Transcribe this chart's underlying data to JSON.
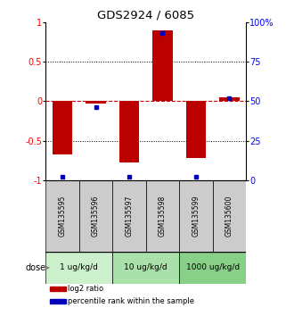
{
  "title": "GDS2924 / 6085",
  "samples": [
    "GSM135595",
    "GSM135596",
    "GSM135597",
    "GSM135598",
    "GSM135599",
    "GSM135600"
  ],
  "log2_ratio": [
    -0.68,
    -0.03,
    -0.78,
    0.9,
    -0.72,
    0.05
  ],
  "percentile_rank": [
    2,
    46,
    2,
    93,
    2,
    52
  ],
  "dose_groups": [
    {
      "label": "1 ug/kg/d",
      "samples": [
        0,
        1
      ],
      "color": "#ccf0cc"
    },
    {
      "label": "10 ug/kg/d",
      "samples": [
        2,
        3
      ],
      "color": "#aae0aa"
    },
    {
      "label": "1000 ug/kg/d",
      "samples": [
        4,
        5
      ],
      "color": "#88d088"
    }
  ],
  "bar_color": "#bb0000",
  "dot_color": "#0000bb",
  "zero_line_color": "#cc0000",
  "ylim_left": [
    -1,
    1
  ],
  "ylim_right": [
    0,
    100
  ],
  "yticks_left": [
    -1,
    -0.5,
    0,
    0.5,
    1
  ],
  "yticks_right": [
    0,
    25,
    50,
    75,
    100
  ],
  "ytick_labels_left": [
    "-1",
    "-0.5",
    "0",
    "0.5",
    "1"
  ],
  "ytick_labels_right": [
    "0",
    "25",
    "50",
    "75",
    "100%"
  ],
  "legend_items": [
    {
      "label": "log2 ratio",
      "color": "#bb0000"
    },
    {
      "label": "percentile rank within the sample",
      "color": "#0000bb"
    }
  ],
  "dose_label": "dose",
  "bar_width": 0.6,
  "sample_box_color": "#cccccc",
  "grid_color": "#000000",
  "zero_line_style": "--",
  "dot_line_style": ":"
}
